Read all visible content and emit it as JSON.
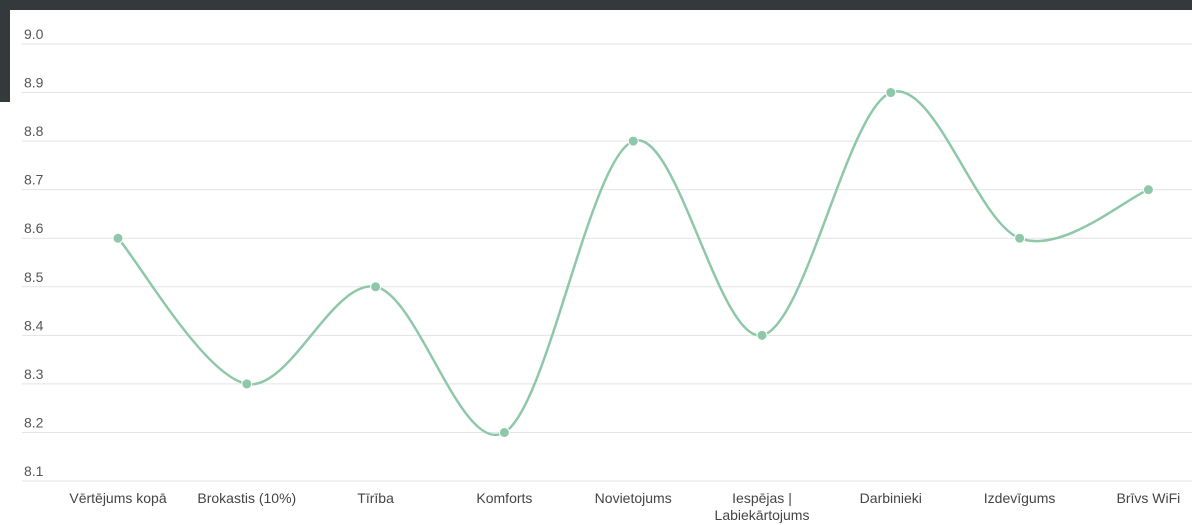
{
  "chart_data": {
    "type": "line",
    "title": "",
    "xlabel": "",
    "ylabel": "",
    "categories": [
      [
        "Vērtējums kopā"
      ],
      [
        "Brokastis (10%)"
      ],
      [
        "Tīrība"
      ],
      [
        "Komforts"
      ],
      [
        "Novietojums"
      ],
      [
        "Iespējas |",
        "Labiekārtojums"
      ],
      [
        "Darbinieki"
      ],
      [
        "Izdevīgums"
      ],
      [
        "Brīvs WiFi"
      ]
    ],
    "values": [
      8.6,
      8.3,
      8.5,
      8.2,
      8.8,
      8.4,
      8.9,
      8.6,
      8.7
    ],
    "ylim": [
      8.1,
      9.0
    ],
    "yticks": [
      "9.0",
      "8.9",
      "8.8",
      "8.7",
      "8.6",
      "8.5",
      "8.4",
      "8.3",
      "8.2",
      "8.1"
    ],
    "grid": true,
    "smooth": true,
    "line_color": "#8fc7a9",
    "grid_color": "#e3e3e3"
  }
}
